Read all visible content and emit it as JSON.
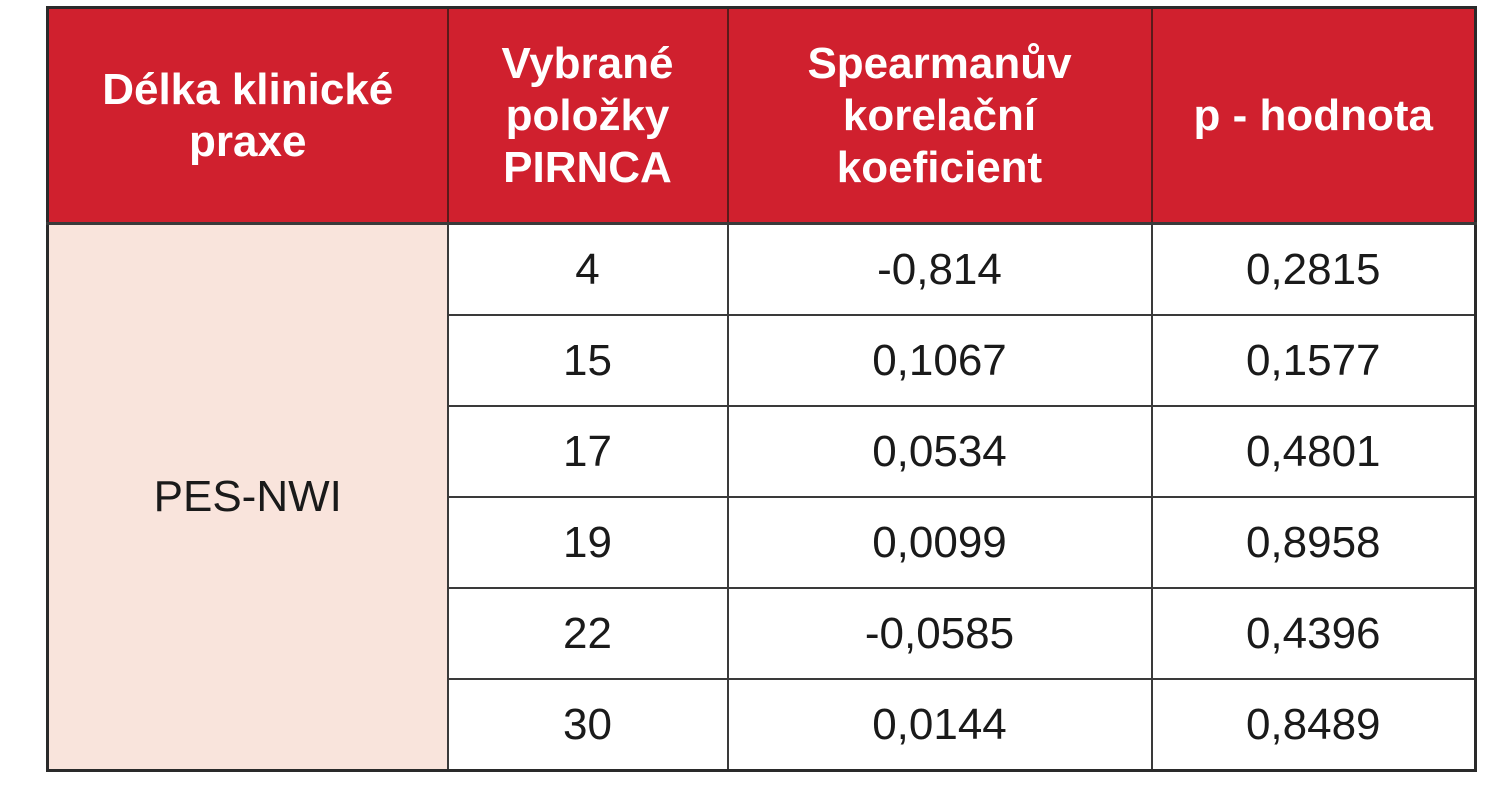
{
  "table": {
    "headers": [
      [
        "Délka klinické",
        "praxe"
      ],
      [
        "Vybrané",
        "položky",
        "PIRNCA"
      ],
      [
        "Spearmanův",
        "korelační",
        "koeficient"
      ],
      [
        "p - hodnota"
      ]
    ],
    "group_label": "PES-NWI",
    "rows": [
      {
        "item": "4",
        "coef": "-0,814",
        "p": "0,2815"
      },
      {
        "item": "15",
        "coef": "0,1067",
        "p": "0,1577"
      },
      {
        "item": "17",
        "coef": "0,0534",
        "p": "0,4801"
      },
      {
        "item": "19",
        "coef": "0,0099",
        "p": "0,8958"
      },
      {
        "item": "22",
        "coef": "-0,0585",
        "p": "0,4396"
      },
      {
        "item": "30",
        "coef": "0,0144",
        "p": "0,8489"
      }
    ]
  },
  "colors": {
    "header_bg": "#d0202e",
    "group_bg": "#f9e4dc"
  }
}
